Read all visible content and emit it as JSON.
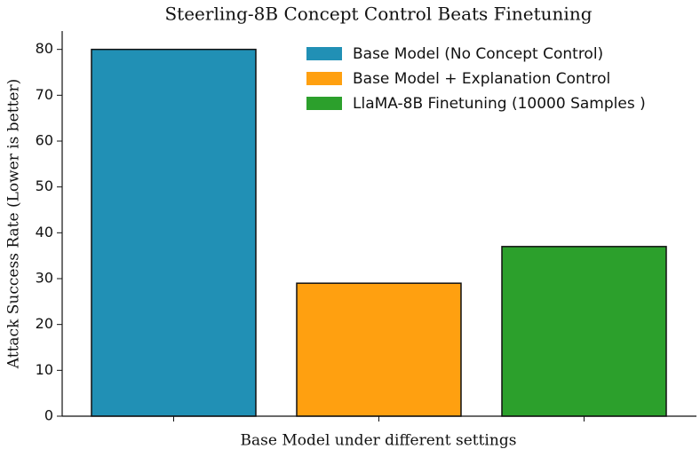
{
  "chart_data": {
    "type": "bar",
    "title": "Steerling-8B Concept Control Beats Finetuning",
    "x_label": "Base Model under different settings",
    "y_label": "Attack Success Rate (Lower is better)",
    "categories": [
      null,
      null,
      null
    ],
    "series": [
      {
        "name": "Base Model (No Concept Control)",
        "color": "#2190b5",
        "values": [
          80,
          null,
          null
        ]
      },
      {
        "name": "Base Model + Explanation Control",
        "color": "#ffa010",
        "values": [
          null,
          29,
          null
        ]
      },
      {
        "name": "LlaMA-8B Finetuning (10000 Samples )",
        "color": "#2ca02c",
        "values": [
          null,
          null,
          37
        ]
      }
    ],
    "ylim": [
      0,
      84
    ],
    "yticks": [
      0,
      10,
      20,
      30,
      40,
      50,
      60,
      70,
      80
    ],
    "legend": "upper right",
    "grid": false
  }
}
